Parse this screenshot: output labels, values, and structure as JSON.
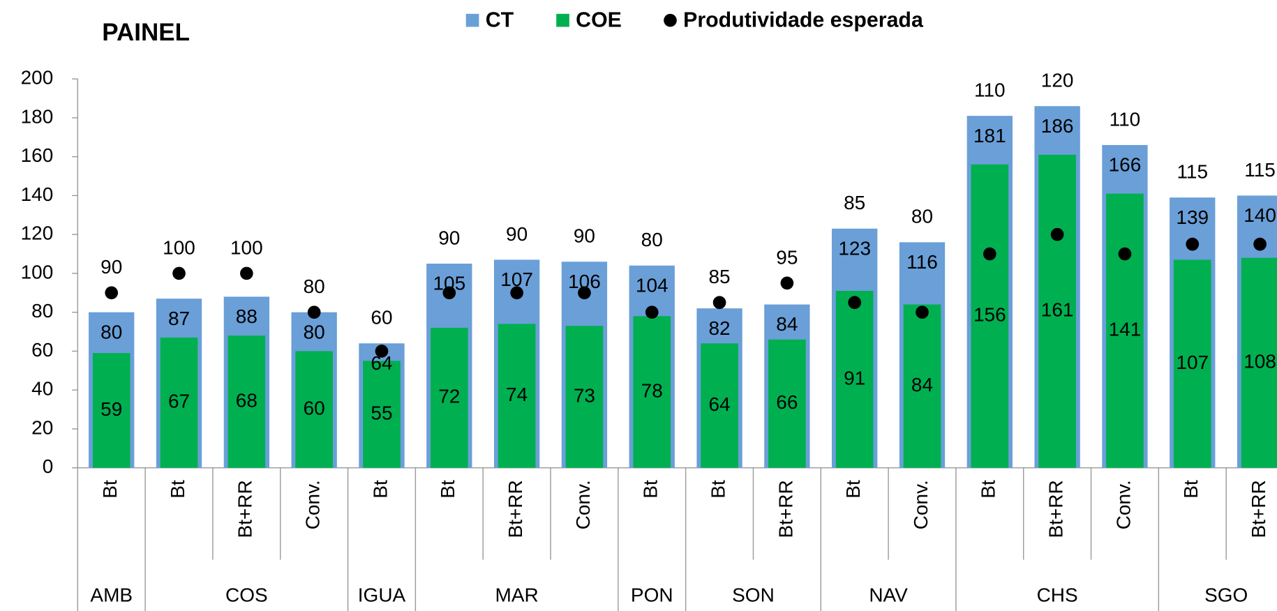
{
  "chart_data": {
    "type": "bar",
    "title": "PAINEL",
    "groups": [
      {
        "name": "AMB",
        "categories": [
          "Bt"
        ]
      },
      {
        "name": "COS",
        "categories": [
          "Bt",
          "Bt+RR",
          "Conv."
        ]
      },
      {
        "name": "IGUA",
        "categories": [
          "Bt"
        ]
      },
      {
        "name": "MAR",
        "categories": [
          "Bt",
          "Bt+RR",
          "Conv."
        ]
      },
      {
        "name": "PON",
        "categories": [
          "Bt"
        ]
      },
      {
        "name": "SON",
        "categories": [
          "Bt",
          "Bt+RR"
        ]
      },
      {
        "name": "NAV",
        "categories": [
          "Bt",
          "Conv."
        ]
      },
      {
        "name": "CHS",
        "categories": [
          "Bt",
          "Bt+RR",
          "Conv."
        ]
      },
      {
        "name": "SGO",
        "categories": [
          "Bt",
          "Bt+RR"
        ]
      }
    ],
    "series": [
      {
        "name": "CT",
        "color": "#6a9fd8",
        "values": [
          80,
          87,
          88,
          80,
          64,
          105,
          107,
          106,
          104,
          82,
          84,
          123,
          116,
          181,
          186,
          166,
          139,
          140
        ]
      },
      {
        "name": "COE",
        "color": "#00b050",
        "values": [
          59,
          67,
          68,
          60,
          55,
          72,
          74,
          73,
          78,
          64,
          66,
          91,
          84,
          156,
          161,
          141,
          107,
          108
        ]
      },
      {
        "name": "Produtividade esperada",
        "color": "#000000",
        "values": [
          90,
          100,
          100,
          80,
          60,
          90,
          90,
          90,
          80,
          85,
          95,
          85,
          80,
          110,
          120,
          110,
          115,
          115
        ]
      }
    ],
    "ylim": [
      0,
      200
    ],
    "yticks": [
      0,
      20,
      40,
      60,
      80,
      100,
      120,
      140,
      160,
      180,
      200
    ]
  }
}
